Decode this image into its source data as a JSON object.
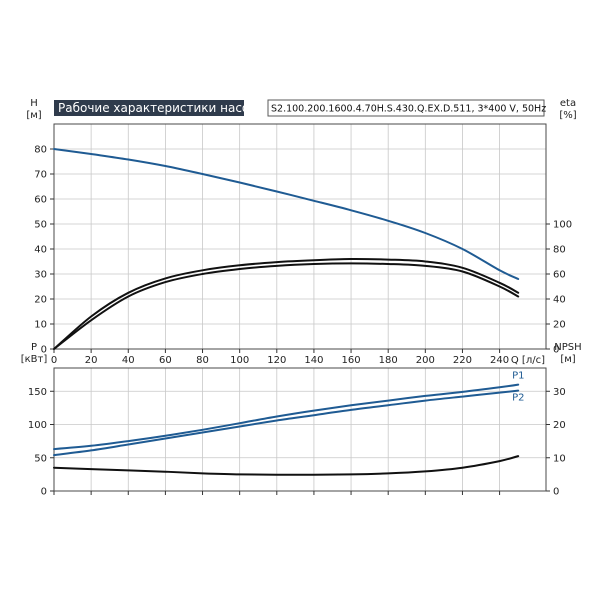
{
  "header": {
    "title": "Рабочие характеристики насоса",
    "model": "S2.100.200.1600.4.70H.S.430.Q.EX.D.511, 3*400 V, 50Hz"
  },
  "colors": {
    "blue_series": "#1f5b93",
    "black_series": "#111111",
    "frame": "#4a4a4a",
    "grid": "#c8c8c8",
    "title_bg": "#2f3b4c"
  },
  "chart_data": [
    {
      "type": "line",
      "panel": "top",
      "x_axis": {
        "label": "Q [л/с]",
        "ticks": [
          0,
          20,
          40,
          60,
          80,
          100,
          120,
          140,
          160,
          180,
          200,
          220,
          240
        ],
        "range": [
          0,
          265
        ]
      },
      "y_axis_left": {
        "label_top": "H",
        "label_unit": "[м]",
        "ticks": [
          0,
          10,
          20,
          30,
          40,
          50,
          60,
          70,
          80
        ],
        "range": [
          0,
          90
        ]
      },
      "y_axis_right": {
        "label_top": "eta",
        "label_unit": "[%]",
        "ticks": [
          0,
          20,
          40,
          60,
          80,
          100
        ],
        "range": [
          0,
          180
        ]
      },
      "grid": true,
      "series": [
        {
          "name": "",
          "role": "head",
          "axis": "left",
          "color": "#1f5b93",
          "x": [
            0,
            20,
            40,
            60,
            80,
            100,
            120,
            140,
            160,
            180,
            200,
            220,
            240,
            250
          ],
          "y": [
            80,
            78,
            75.8,
            73.2,
            70,
            66.6,
            63,
            59.3,
            55.5,
            51.3,
            46.4,
            40,
            31.5,
            28
          ]
        },
        {
          "name": "",
          "role": "efficiency-1",
          "axis": "right",
          "color": "#111111",
          "x": [
            0,
            20,
            40,
            60,
            80,
            100,
            120,
            140,
            160,
            180,
            200,
            220,
            240,
            250
          ],
          "y": [
            0,
            26,
            45,
            56.5,
            63,
            67,
            69.5,
            71,
            72,
            71.5,
            70,
            65,
            53,
            45
          ]
        },
        {
          "name": "",
          "role": "efficiency-2",
          "axis": "right",
          "color": "#111111",
          "x": [
            0,
            20,
            40,
            60,
            80,
            100,
            120,
            140,
            160,
            180,
            200,
            220,
            240,
            250
          ],
          "y": [
            0,
            23,
            42,
            53.5,
            60,
            64,
            66.5,
            68,
            68.5,
            68,
            66.5,
            62,
            50,
            42
          ]
        }
      ]
    },
    {
      "type": "line",
      "panel": "bottom",
      "x_axis": {
        "ticks": [
          0,
          20,
          40,
          60,
          80,
          100,
          120,
          140,
          160,
          180,
          200,
          220,
          240
        ],
        "range": [
          0,
          265
        ]
      },
      "y_axis_left": {
        "label_top": "P",
        "label_unit": "[кВт]",
        "ticks": [
          0,
          50,
          100,
          150
        ],
        "range": [
          0,
          185
        ]
      },
      "y_axis_right": {
        "label_top": "NPSH",
        "label_unit": "[м]",
        "ticks": [
          0,
          10,
          20,
          30
        ],
        "range": [
          0,
          37
        ]
      },
      "grid": true,
      "series": [
        {
          "name": "P1",
          "axis": "left",
          "color": "#1f5b93",
          "x": [
            0,
            20,
            40,
            60,
            80,
            100,
            120,
            140,
            160,
            180,
            200,
            220,
            240,
            250
          ],
          "y": [
            63,
            68,
            75,
            83,
            92,
            102,
            112,
            121,
            129,
            136,
            143,
            149,
            156,
            160
          ]
        },
        {
          "name": "P2",
          "axis": "left",
          "color": "#1f5b93",
          "x": [
            0,
            20,
            40,
            60,
            80,
            100,
            120,
            140,
            160,
            180,
            200,
            220,
            240,
            250
          ],
          "y": [
            54,
            61,
            70,
            79,
            88,
            97,
            106,
            114,
            122,
            129,
            136,
            142,
            148,
            151
          ]
        },
        {
          "name": "",
          "role": "npsh",
          "axis": "right",
          "color": "#111111",
          "x": [
            0,
            20,
            40,
            60,
            80,
            100,
            120,
            140,
            160,
            180,
            200,
            220,
            240,
            250
          ],
          "y": [
            7,
            6.6,
            6.2,
            5.8,
            5.3,
            5,
            4.9,
            4.9,
            5,
            5.3,
            5.9,
            7,
            9,
            10.5
          ]
        }
      ]
    }
  ]
}
